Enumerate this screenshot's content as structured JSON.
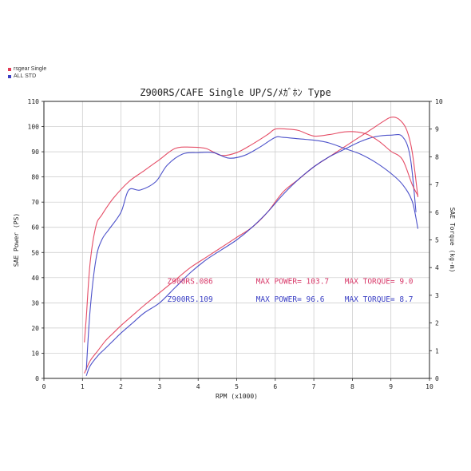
{
  "legend": [
    {
      "label": "rsgear Single",
      "color": "#e23a55"
    },
    {
      "label": "ALL STD",
      "color": "#3a3fc4"
    }
  ],
  "colors": {
    "red": "#e23a55",
    "blue": "#3a3fc4",
    "grid": "#c8c8c8",
    "annot_red": "#d83a6a"
  },
  "chart_data": {
    "type": "line",
    "title": "Z900RS/CAFE Single  UP/S/ﾒｶﾞﾎﾝ Type",
    "xlabel": "RPM (x1000)",
    "ylabel": "SAE Power (PS)",
    "y2label": "SAE Torque (kg-m)",
    "xlim": [
      0,
      10
    ],
    "ylim": [
      0,
      110
    ],
    "y2lim": [
      0,
      10
    ],
    "xticks": [
      "0",
      "1",
      "2",
      "3",
      "4",
      "5",
      "6",
      "7",
      "8",
      "9",
      "10"
    ],
    "yticks": [
      "0",
      "10",
      "20",
      "30",
      "40",
      "50",
      "60",
      "70",
      "80",
      "90",
      "100",
      "110"
    ],
    "y2ticks": [
      "0",
      "1",
      "2",
      "3",
      "4",
      "5",
      "6",
      "7",
      "8",
      "9",
      "10"
    ],
    "grid": true,
    "series": [
      {
        "name": "Power rsgear",
        "axis": "left",
        "color": "red",
        "x": [
          1.05,
          1.2,
          1.4,
          1.6,
          1.8,
          2.0,
          2.3,
          2.6,
          3.0,
          3.4,
          3.8,
          4.2,
          4.6,
          5.0,
          5.4,
          5.8,
          6.2,
          6.6,
          7.0,
          7.4,
          7.8,
          8.2,
          8.5,
          8.8,
          9.0,
          9.2,
          9.4,
          9.55,
          9.7
        ],
        "y": [
          2,
          7,
          11,
          15,
          18,
          21,
          25,
          29,
          34,
          39,
          44,
          48,
          52,
          56,
          60,
          66,
          74,
          79,
          84,
          88,
          92,
          96,
          99,
          102,
          103.7,
          103,
          99,
          90,
          72
        ]
      },
      {
        "name": "Power STD",
        "axis": "left",
        "color": "blue",
        "x": [
          1.1,
          1.2,
          1.4,
          1.6,
          1.8,
          2.0,
          2.3,
          2.6,
          3.0,
          3.4,
          3.8,
          4.2,
          4.6,
          5.0,
          5.4,
          5.8,
          6.2,
          6.6,
          7.0,
          7.4,
          7.8,
          8.2,
          8.6,
          9.0,
          9.3,
          9.5,
          9.65
        ],
        "y": [
          1,
          5,
          9,
          12,
          15,
          18,
          22,
          26,
          30,
          36,
          42,
          47,
          51,
          55,
          60,
          66,
          73,
          79,
          84,
          88,
          91,
          94,
          96,
          96.6,
          96,
          88,
          66
        ]
      },
      {
        "name": "Torque rsgear",
        "axis": "right",
        "color": "red",
        "x": [
          1.05,
          1.1,
          1.2,
          1.35,
          1.5,
          1.8,
          2.2,
          2.6,
          3.0,
          3.4,
          3.8,
          4.2,
          4.6,
          5.0,
          5.4,
          5.8,
          6.0,
          6.3,
          6.6,
          7.0,
          7.4,
          7.8,
          8.1,
          8.4,
          8.7,
          9.0,
          9.3,
          9.55,
          9.7
        ],
        "y": [
          1.3,
          2.2,
          4.2,
          5.5,
          5.9,
          6.5,
          7.1,
          7.5,
          7.9,
          8.3,
          8.35,
          8.3,
          8.05,
          8.15,
          8.45,
          8.8,
          9.0,
          9.0,
          8.95,
          8.75,
          8.8,
          8.9,
          8.9,
          8.8,
          8.55,
          8.2,
          7.9,
          7.0,
          6.6
        ]
      },
      {
        "name": "Torque STD",
        "axis": "right",
        "color": "blue",
        "x": [
          1.1,
          1.2,
          1.35,
          1.5,
          1.7,
          2.0,
          2.2,
          2.5,
          2.9,
          3.2,
          3.6,
          4.0,
          4.4,
          4.8,
          5.2,
          5.6,
          6.0,
          6.2,
          6.6,
          7.0,
          7.4,
          7.8,
          8.2,
          8.6,
          9.0,
          9.3,
          9.55,
          9.7
        ],
        "y": [
          0.3,
          2.5,
          4.3,
          5.0,
          5.4,
          6.0,
          6.8,
          6.8,
          7.1,
          7.7,
          8.1,
          8.15,
          8.15,
          7.95,
          8.05,
          8.35,
          8.7,
          8.7,
          8.65,
          8.6,
          8.5,
          8.3,
          8.1,
          7.8,
          7.4,
          7.0,
          6.4,
          5.4
        ]
      }
    ],
    "annotations": [
      {
        "text": "Z900RS.086",
        "x": 3.2,
        "y": 37.5,
        "color": "red"
      },
      {
        "text": "MAX POWER= 103.7",
        "x": 5.5,
        "y": 37.5,
        "color": "red"
      },
      {
        "text": "MAX TORQUE= 9.0",
        "x": 7.8,
        "y": 37.5,
        "color": "red"
      },
      {
        "text": "Z900RS.109",
        "x": 3.2,
        "y": 30.5,
        "color": "blue"
      },
      {
        "text": "MAX POWER= 96.6",
        "x": 5.5,
        "y": 30.5,
        "color": "blue"
      },
      {
        "text": "MAX TORQUE= 8.7",
        "x": 7.8,
        "y": 30.5,
        "color": "blue"
      }
    ]
  }
}
